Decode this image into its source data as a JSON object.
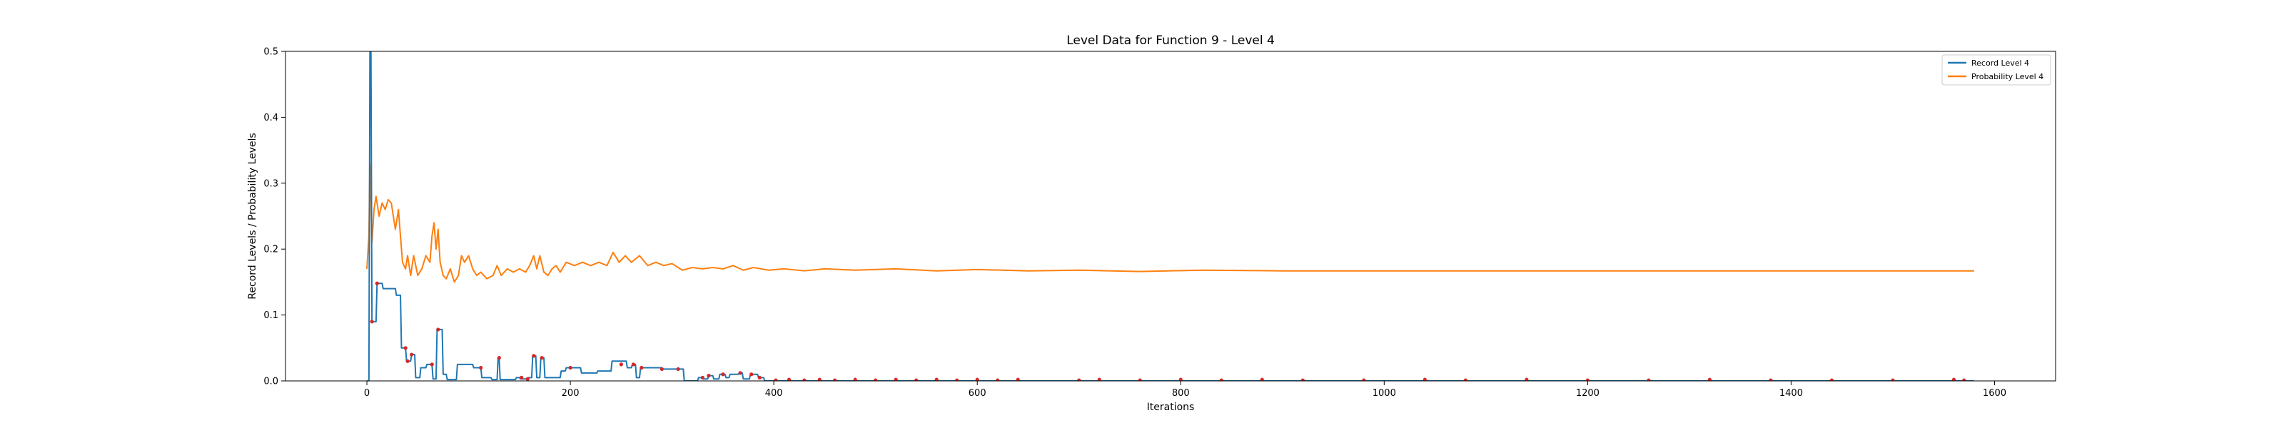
{
  "chart_data": {
    "type": "line",
    "title": "Level Data for Function 9 - Level 4",
    "xlabel": "Iterations",
    "ylabel": "Record Levels / Probability Levels",
    "xlim": [
      -80,
      1660
    ],
    "ylim": [
      0,
      0.5
    ],
    "xticks": [
      0,
      200,
      400,
      600,
      800,
      1000,
      1200,
      1400,
      1600
    ],
    "yticks": [
      0.0,
      0.1,
      0.2,
      0.3,
      0.4,
      0.5
    ],
    "xtick_labels": [
      "0",
      "200",
      "400",
      "600",
      "800",
      "1000",
      "1200",
      "1400",
      "1600"
    ],
    "ytick_labels": [
      "0.0",
      "0.1",
      "0.2",
      "0.3",
      "0.4",
      "0.5"
    ],
    "grid": false,
    "legend_position": "upper-right",
    "series": [
      {
        "name": "Record Level 4",
        "color": "#1f77b4",
        "style": "step",
        "points": [
          [
            0,
            0.0
          ],
          [
            2,
            0.0
          ],
          [
            3,
            0.5
          ],
          [
            4,
            0.5
          ],
          [
            5,
            0.09
          ],
          [
            9,
            0.09
          ],
          [
            10,
            0.148
          ],
          [
            15,
            0.148
          ],
          [
            16,
            0.14
          ],
          [
            28,
            0.14
          ],
          [
            29,
            0.13
          ],
          [
            33,
            0.13
          ],
          [
            34,
            0.05
          ],
          [
            38,
            0.05
          ],
          [
            39,
            0.03
          ],
          [
            43,
            0.03
          ],
          [
            44,
            0.04
          ],
          [
            47,
            0.04
          ],
          [
            48,
            0.005
          ],
          [
            52,
            0.005
          ],
          [
            53,
            0.02
          ],
          [
            58,
            0.02
          ],
          [
            59,
            0.025
          ],
          [
            64,
            0.025
          ],
          [
            65,
            0.003
          ],
          [
            68,
            0.003
          ],
          [
            69,
            0.078
          ],
          [
            74,
            0.078
          ],
          [
            75,
            0.01
          ],
          [
            78,
            0.01
          ],
          [
            79,
            0.002
          ],
          [
            88,
            0.002
          ],
          [
            89,
            0.025
          ],
          [
            104,
            0.025
          ],
          [
            105,
            0.02
          ],
          [
            112,
            0.02
          ],
          [
            113,
            0.005
          ],
          [
            122,
            0.005
          ],
          [
            123,
            0.002
          ],
          [
            128,
            0.002
          ],
          [
            129,
            0.035
          ],
          [
            130,
            0.035
          ],
          [
            131,
            0.002
          ],
          [
            146,
            0.002
          ],
          [
            147,
            0.005
          ],
          [
            150,
            0.005
          ],
          [
            151,
            0.003
          ],
          [
            158,
            0.003
          ],
          [
            159,
            0.005
          ],
          [
            162,
            0.005
          ],
          [
            163,
            0.038
          ],
          [
            166,
            0.038
          ],
          [
            167,
            0.005
          ],
          [
            170,
            0.005
          ],
          [
            171,
            0.035
          ],
          [
            174,
            0.035
          ],
          [
            175,
            0.005
          ],
          [
            190,
            0.005
          ],
          [
            191,
            0.015
          ],
          [
            195,
            0.015
          ],
          [
            196,
            0.02
          ],
          [
            210,
            0.02
          ],
          [
            211,
            0.012
          ],
          [
            226,
            0.012
          ],
          [
            227,
            0.015
          ],
          [
            240,
            0.015
          ],
          [
            241,
            0.03
          ],
          [
            255,
            0.03
          ],
          [
            256,
            0.02
          ],
          [
            260,
            0.02
          ],
          [
            261,
            0.025
          ],
          [
            264,
            0.025
          ],
          [
            265,
            0.005
          ],
          [
            268,
            0.005
          ],
          [
            269,
            0.02
          ],
          [
            290,
            0.02
          ],
          [
            291,
            0.018
          ],
          [
            311,
            0.018
          ],
          [
            312,
            0.0
          ],
          [
            325,
            0.0
          ],
          [
            326,
            0.005
          ],
          [
            329,
            0.005
          ],
          [
            330,
            0.003
          ],
          [
            335,
            0.003
          ],
          [
            336,
            0.008
          ],
          [
            340,
            0.008
          ],
          [
            341,
            0.003
          ],
          [
            346,
            0.003
          ],
          [
            347,
            0.01
          ],
          [
            352,
            0.01
          ],
          [
            353,
            0.005
          ],
          [
            356,
            0.005
          ],
          [
            357,
            0.01
          ],
          [
            365,
            0.01
          ],
          [
            366,
            0.012
          ],
          [
            369,
            0.012
          ],
          [
            370,
            0.003
          ],
          [
            376,
            0.003
          ],
          [
            377,
            0.01
          ],
          [
            384,
            0.01
          ],
          [
            385,
            0.005
          ],
          [
            390,
            0.005
          ],
          [
            391,
            0.0
          ],
          [
            1580,
            0.0
          ]
        ],
        "red_markers": [
          [
            5,
            0.09
          ],
          [
            10,
            0.148
          ],
          [
            38,
            0.05
          ],
          [
            40,
            0.03
          ],
          [
            44,
            0.04
          ],
          [
            64,
            0.025
          ],
          [
            70,
            0.078
          ],
          [
            112,
            0.02
          ],
          [
            130,
            0.035
          ],
          [
            164,
            0.038
          ],
          [
            172,
            0.035
          ],
          [
            200,
            0.02
          ],
          [
            250,
            0.025
          ],
          [
            262,
            0.025
          ],
          [
            270,
            0.02
          ],
          [
            290,
            0.018
          ],
          [
            306,
            0.018
          ],
          [
            152,
            0.005
          ],
          [
            158,
            0.003
          ],
          [
            330,
            0.005
          ],
          [
            336,
            0.008
          ],
          [
            350,
            0.01
          ],
          [
            367,
            0.012
          ],
          [
            378,
            0.01
          ],
          [
            386,
            0.005
          ],
          [
            402,
            0.001
          ],
          [
            415,
            0.002
          ],
          [
            430,
            0.001
          ],
          [
            445,
            0.002
          ],
          [
            460,
            0.001
          ],
          [
            480,
            0.002
          ],
          [
            500,
            0.001
          ],
          [
            520,
            0.002
          ],
          [
            540,
            0.001
          ],
          [
            560,
            0.002
          ],
          [
            580,
            0.001
          ],
          [
            600,
            0.002
          ],
          [
            620,
            0.001
          ],
          [
            640,
            0.002
          ],
          [
            700,
            0.001
          ],
          [
            720,
            0.002
          ],
          [
            760,
            0.001
          ],
          [
            800,
            0.002
          ],
          [
            840,
            0.001
          ],
          [
            880,
            0.002
          ],
          [
            920,
            0.001
          ],
          [
            980,
            0.001
          ],
          [
            1040,
            0.002
          ],
          [
            1080,
            0.001
          ],
          [
            1140,
            0.002
          ],
          [
            1200,
            0.001
          ],
          [
            1260,
            0.001
          ],
          [
            1320,
            0.002
          ],
          [
            1380,
            0.001
          ],
          [
            1440,
            0.001
          ],
          [
            1500,
            0.001
          ],
          [
            1560,
            0.002
          ],
          [
            1570,
            0.001
          ]
        ]
      },
      {
        "name": "Probability Level 4",
        "color": "#ff7f0e",
        "style": "line",
        "points": [
          [
            0,
            0.17
          ],
          [
            2,
            0.22
          ],
          [
            3,
            0.33
          ],
          [
            5,
            0.21
          ],
          [
            7,
            0.26
          ],
          [
            9,
            0.28
          ],
          [
            12,
            0.25
          ],
          [
            15,
            0.27
          ],
          [
            18,
            0.26
          ],
          [
            21,
            0.275
          ],
          [
            24,
            0.27
          ],
          [
            28,
            0.23
          ],
          [
            31,
            0.26
          ],
          [
            35,
            0.18
          ],
          [
            38,
            0.17
          ],
          [
            40,
            0.19
          ],
          [
            43,
            0.16
          ],
          [
            46,
            0.19
          ],
          [
            50,
            0.16
          ],
          [
            54,
            0.17
          ],
          [
            58,
            0.19
          ],
          [
            62,
            0.18
          ],
          [
            64,
            0.22
          ],
          [
            66,
            0.24
          ],
          [
            68,
            0.2
          ],
          [
            70,
            0.23
          ],
          [
            72,
            0.18
          ],
          [
            75,
            0.16
          ],
          [
            78,
            0.155
          ],
          [
            82,
            0.17
          ],
          [
            86,
            0.15
          ],
          [
            90,
            0.16
          ],
          [
            93,
            0.19
          ],
          [
            96,
            0.18
          ],
          [
            100,
            0.19
          ],
          [
            104,
            0.17
          ],
          [
            108,
            0.16
          ],
          [
            112,
            0.165
          ],
          [
            118,
            0.155
          ],
          [
            124,
            0.16
          ],
          [
            128,
            0.175
          ],
          [
            132,
            0.16
          ],
          [
            138,
            0.17
          ],
          [
            144,
            0.165
          ],
          [
            150,
            0.17
          ],
          [
            156,
            0.165
          ],
          [
            160,
            0.175
          ],
          [
            164,
            0.19
          ],
          [
            167,
            0.17
          ],
          [
            170,
            0.19
          ],
          [
            174,
            0.165
          ],
          [
            178,
            0.16
          ],
          [
            182,
            0.17
          ],
          [
            186,
            0.175
          ],
          [
            190,
            0.165
          ],
          [
            196,
            0.18
          ],
          [
            204,
            0.175
          ],
          [
            212,
            0.18
          ],
          [
            220,
            0.175
          ],
          [
            228,
            0.18
          ],
          [
            236,
            0.175
          ],
          [
            242,
            0.195
          ],
          [
            248,
            0.18
          ],
          [
            254,
            0.19
          ],
          [
            260,
            0.18
          ],
          [
            268,
            0.19
          ],
          [
            276,
            0.175
          ],
          [
            284,
            0.18
          ],
          [
            292,
            0.175
          ],
          [
            300,
            0.178
          ],
          [
            310,
            0.168
          ],
          [
            320,
            0.172
          ],
          [
            330,
            0.17
          ],
          [
            340,
            0.172
          ],
          [
            350,
            0.17
          ],
          [
            360,
            0.175
          ],
          [
            370,
            0.168
          ],
          [
            380,
            0.172
          ],
          [
            395,
            0.168
          ],
          [
            410,
            0.17
          ],
          [
            430,
            0.167
          ],
          [
            450,
            0.17
          ],
          [
            480,
            0.168
          ],
          [
            520,
            0.17
          ],
          [
            560,
            0.167
          ],
          [
            600,
            0.169
          ],
          [
            650,
            0.167
          ],
          [
            700,
            0.168
          ],
          [
            760,
            0.166
          ],
          [
            820,
            0.168
          ],
          [
            900,
            0.167
          ],
          [
            1000,
            0.167
          ],
          [
            1100,
            0.167
          ],
          [
            1200,
            0.167
          ],
          [
            1300,
            0.167
          ],
          [
            1400,
            0.167
          ],
          [
            1500,
            0.167
          ],
          [
            1580,
            0.167
          ]
        ]
      }
    ]
  }
}
